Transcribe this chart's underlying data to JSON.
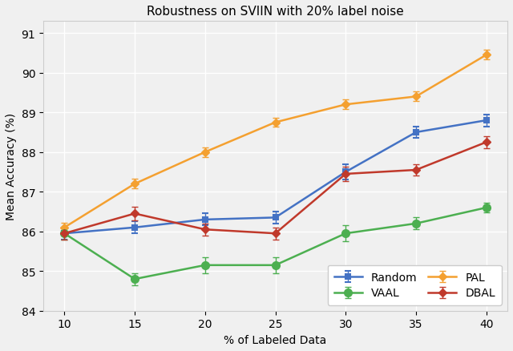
{
  "title": "Robustness on SVIIN with 20% label noise",
  "xlabel": "% of Labeled Data",
  "ylabel": "Mean Accuracy (%)",
  "x": [
    10,
    15,
    20,
    25,
    30,
    35,
    40
  ],
  "series_order": [
    "Random",
    "PAL",
    "VAAL",
    "DBAL"
  ],
  "series": {
    "Random": {
      "y": [
        85.95,
        86.1,
        86.3,
        86.35,
        87.5,
        88.5,
        88.8
      ],
      "yerr": [
        0.15,
        0.15,
        0.15,
        0.15,
        0.2,
        0.15,
        0.15
      ],
      "color": "#4472c4",
      "linestyle": "-"
    },
    "PAL": {
      "y": [
        86.1,
        87.2,
        88.0,
        88.75,
        89.2,
        89.4,
        90.45
      ],
      "yerr": [
        0.12,
        0.12,
        0.12,
        0.12,
        0.12,
        0.12,
        0.12
      ],
      "color": "#f4a030",
      "linestyle": "-"
    },
    "VAAL": {
      "y": [
        85.95,
        84.8,
        85.15,
        85.15,
        85.95,
        86.2,
        86.6
      ],
      "yerr": [
        0.15,
        0.15,
        0.2,
        0.2,
        0.2,
        0.15,
        0.12
      ],
      "color": "#4caf50",
      "linestyle": "-"
    },
    "DBAL": {
      "y": [
        85.95,
        86.45,
        86.05,
        85.95,
        87.45,
        87.55,
        88.25
      ],
      "yerr": [
        0.15,
        0.18,
        0.15,
        0.15,
        0.18,
        0.15,
        0.15
      ],
      "color": "#c0392b",
      "linestyle": "-"
    }
  },
  "ylim": [
    84,
    91.3
  ],
  "yticks": [
    84,
    85,
    86,
    87,
    88,
    89,
    90,
    91
  ],
  "xlim": [
    8.5,
    41.5
  ],
  "xticks": [
    10,
    15,
    20,
    25,
    30,
    35,
    40
  ],
  "legend_order": [
    "Random",
    "VAAL",
    "PAL",
    "DBAL"
  ],
  "background_color": "#f0f0f0",
  "plot_bg_color": "#f0f0f0",
  "grid_color": "#ffffff",
  "title_fontsize": 11,
  "label_fontsize": 10,
  "tick_fontsize": 10,
  "legend_fontsize": 10
}
